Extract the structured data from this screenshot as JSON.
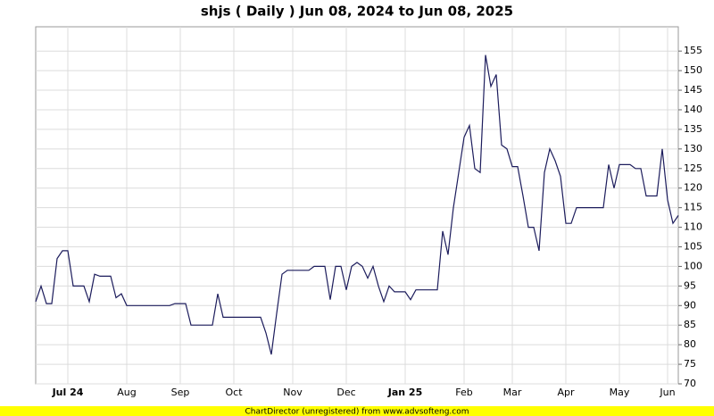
{
  "chart_data": {
    "type": "line",
    "title": "shjs ( Daily ) Jun 08, 2024 to Jun 08, 2025",
    "footer": "ChartDirector (unregistered) from www.advsofteng.com",
    "categories": [
      null,
      null,
      null,
      null,
      null,
      null,
      "Jul 24",
      null,
      null,
      null,
      null,
      null,
      null,
      null,
      null,
      null,
      null,
      "Aug",
      null,
      null,
      null,
      null,
      null,
      null,
      null,
      null,
      null,
      "Sep",
      null,
      null,
      null,
      null,
      null,
      null,
      null,
      null,
      null,
      "Oct",
      null,
      null,
      null,
      null,
      null,
      null,
      null,
      null,
      null,
      null,
      "Nov",
      null,
      null,
      null,
      null,
      null,
      null,
      null,
      null,
      null,
      "Dec",
      null,
      null,
      null,
      null,
      null,
      null,
      null,
      null,
      null,
      null,
      "Jan 25",
      null,
      null,
      null,
      null,
      null,
      null,
      null,
      null,
      null,
      null,
      "Feb",
      null,
      null,
      null,
      null,
      null,
      null,
      null,
      null,
      "Mar",
      null,
      null,
      null,
      null,
      null,
      null,
      null,
      null,
      null,
      "Apr",
      null,
      null,
      null,
      null,
      null,
      null,
      null,
      null,
      null,
      "May",
      null,
      null,
      null,
      null,
      null,
      null,
      null,
      null,
      "Jun",
      null,
      null
    ],
    "series": [
      {
        "color": "#1c1c5c",
        "values": [
          91,
          95,
          90.5,
          90.5,
          102,
          104,
          104,
          95,
          95,
          95,
          91,
          98,
          97.5,
          97.5,
          97.5,
          92,
          93,
          90,
          90,
          90,
          90,
          90,
          90,
          90,
          90,
          90,
          90.5,
          90.5,
          90.5,
          85,
          85,
          85,
          85,
          85,
          93,
          87,
          87,
          87,
          87,
          87,
          87,
          87,
          87,
          83,
          77.5,
          88,
          98,
          99,
          99,
          99,
          99,
          99,
          100,
          100,
          100,
          91.5,
          100,
          100,
          94,
          100,
          101,
          100,
          97,
          100,
          95,
          91,
          95,
          93.5,
          93.5,
          93.5,
          91.5,
          94,
          94,
          94,
          94,
          94,
          109,
          103,
          115,
          124,
          133,
          136,
          125,
          124,
          154,
          146,
          149,
          131,
          130,
          125.5,
          125.5,
          118,
          110,
          110,
          104,
          124,
          130,
          127,
          123,
          111,
          111,
          115,
          115,
          115,
          115,
          115,
          115,
          126,
          120,
          126,
          126,
          126,
          125,
          125,
          118,
          118,
          118,
          130,
          117,
          111,
          113
        ]
      }
    ],
    "ylim": [
      70,
      161.2
    ],
    "yticks": [
      70,
      75,
      80,
      85,
      90,
      95,
      100,
      105,
      110,
      115,
      120,
      125,
      130,
      135,
      140,
      145,
      150,
      155
    ],
    "grid": true
  }
}
